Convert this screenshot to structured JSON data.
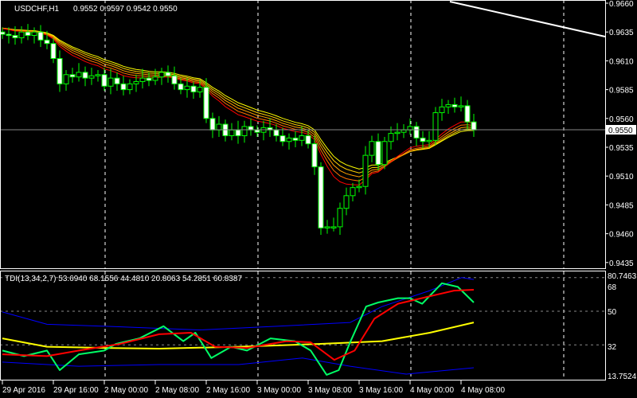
{
  "chart_header": {
    "symbol_timeframe": "USDCHF,H1",
    "ohlc": "0.9552 0.9597 0.9542 0.9550"
  },
  "indicator_header": "TDI(13,34,2,7) 53.6940 68.1556 44.4810 20.8063 54.2851 60.8387",
  "colors": {
    "background": "#000000",
    "bull_outline": "#00ff00",
    "bear_fill": "#ffffff",
    "grid": "#ffffff",
    "tdi_price": "#00ff66",
    "tdi_signal": "#ff0000",
    "tdi_base": "#ffff00",
    "tdi_bands": "#0000ff",
    "ema_ribbon": [
      "#ffff00",
      "#ffd000",
      "#ffa000",
      "#ff7000",
      "#ff0000"
    ]
  },
  "price_axis": [
    "0.9660",
    "0.9635",
    "0.9610",
    "0.9585",
    "0.9560",
    "0.9535",
    "0.9510",
    "0.9485",
    "0.9460",
    "0.9435"
  ],
  "current_price": "0.9550",
  "tdi_axis": [
    "80.7463",
    "68",
    "50",
    "32",
    "13.7524"
  ],
  "time_axis": [
    "29 Apr 2016",
    "29 Apr 16:00",
    "2 May 00:00",
    "2 May 08:00",
    "2 May 16:00",
    "3 May 00:00",
    "3 May 08:00",
    "3 May 16:00",
    "4 May 00:00",
    "4 May 08:00"
  ],
  "chart_data": {
    "type": "candlestick",
    "ylim": [
      0.9425,
      0.9662
    ],
    "closes": [
      0.9633,
      0.9632,
      0.963,
      0.9635,
      0.9632,
      0.9635,
      0.9628,
      0.9625,
      0.9612,
      0.959,
      0.9598,
      0.9596,
      0.96,
      0.9595,
      0.9597,
      0.9598,
      0.9588,
      0.9595,
      0.959,
      0.9585,
      0.959,
      0.9592,
      0.9595,
      0.9593,
      0.9596,
      0.96,
      0.9597,
      0.959,
      0.9585,
      0.9588,
      0.9583,
      0.9587,
      0.956,
      0.955,
      0.9555,
      0.9545,
      0.955,
      0.9545,
      0.9553,
      0.955,
      0.9548,
      0.9552,
      0.955,
      0.9545,
      0.954,
      0.9543,
      0.9541,
      0.9545,
      0.9538,
      0.9518,
      0.9465,
      0.9466,
      0.9466,
      0.9482,
      0.9493,
      0.95,
      0.9501,
      0.9528,
      0.954,
      0.952,
      0.954,
      0.9547,
      0.9548,
      0.955,
      0.9553,
      0.9543,
      0.954,
      0.9541,
      0.9565,
      0.957,
      0.9572,
      0.957,
      0.9571,
      0.9557,
      0.955
    ],
    "tdi": {
      "ylim": [
        13.7524,
        80.7463
      ],
      "levels": [
        68,
        50,
        32
      ],
      "price_line": [
        [
          0,
          29
        ],
        [
          3.4,
          26
        ],
        [
          7,
          29
        ],
        [
          9,
          18.5
        ],
        [
          12,
          27
        ],
        [
          16,
          29
        ],
        [
          17.8,
          32.5
        ],
        [
          21.5,
          35.5
        ],
        [
          25.3,
          42
        ],
        [
          28.4,
          34
        ],
        [
          30.3,
          38.5
        ],
        [
          32.8,
          25
        ],
        [
          35.9,
          31
        ],
        [
          38.4,
          29
        ],
        [
          42.1,
          35.5
        ],
        [
          45.9,
          34
        ],
        [
          48.4,
          29
        ],
        [
          50.9,
          16
        ],
        [
          52.8,
          18.5
        ],
        [
          54.6,
          33.5
        ],
        [
          57.1,
          52.5
        ],
        [
          59,
          54.7
        ],
        [
          62.1,
          57
        ],
        [
          64,
          57
        ],
        [
          65.9,
          54
        ],
        [
          69,
          65
        ],
        [
          71.5,
          63
        ],
        [
          74,
          54.7
        ]
      ],
      "signal_line": [
        [
          0,
          27
        ],
        [
          7,
          26
        ],
        [
          12,
          29
        ],
        [
          18.4,
          32.5
        ],
        [
          24.6,
          37.7
        ],
        [
          29.6,
          38.5
        ],
        [
          33.4,
          31
        ],
        [
          38.4,
          30.4
        ],
        [
          44.6,
          34
        ],
        [
          48.4,
          33.4
        ],
        [
          52.1,
          24
        ],
        [
          55.3,
          29
        ],
        [
          58.4,
          46
        ],
        [
          62.1,
          54
        ],
        [
          67.1,
          58
        ],
        [
          70.9,
          61
        ],
        [
          74,
          61.5
        ]
      ],
      "base_line": [
        [
          0,
          35.5
        ],
        [
          7,
          31
        ],
        [
          15.9,
          30.4
        ],
        [
          24.6,
          30
        ],
        [
          37.1,
          31
        ],
        [
          49.6,
          32.5
        ],
        [
          59.6,
          34
        ],
        [
          67.1,
          38.5
        ],
        [
          74,
          44
        ]
      ],
      "upper_band": [
        [
          0,
          49.6
        ],
        [
          7,
          43
        ],
        [
          15.9,
          42
        ],
        [
          30.9,
          40
        ],
        [
          43.4,
          42
        ],
        [
          54.6,
          44
        ],
        [
          59.6,
          52.5
        ],
        [
          67.1,
          61
        ],
        [
          72.1,
          68
        ],
        [
          74,
          67
        ]
      ],
      "lower_band": [
        [
          0,
          22.8
        ],
        [
          12,
          20.6
        ],
        [
          24.6,
          21.5
        ],
        [
          37.1,
          21.5
        ],
        [
          47.1,
          25
        ],
        [
          54.6,
          20.6
        ],
        [
          63.4,
          16.4
        ],
        [
          74,
          19.8
        ]
      ]
    }
  }
}
